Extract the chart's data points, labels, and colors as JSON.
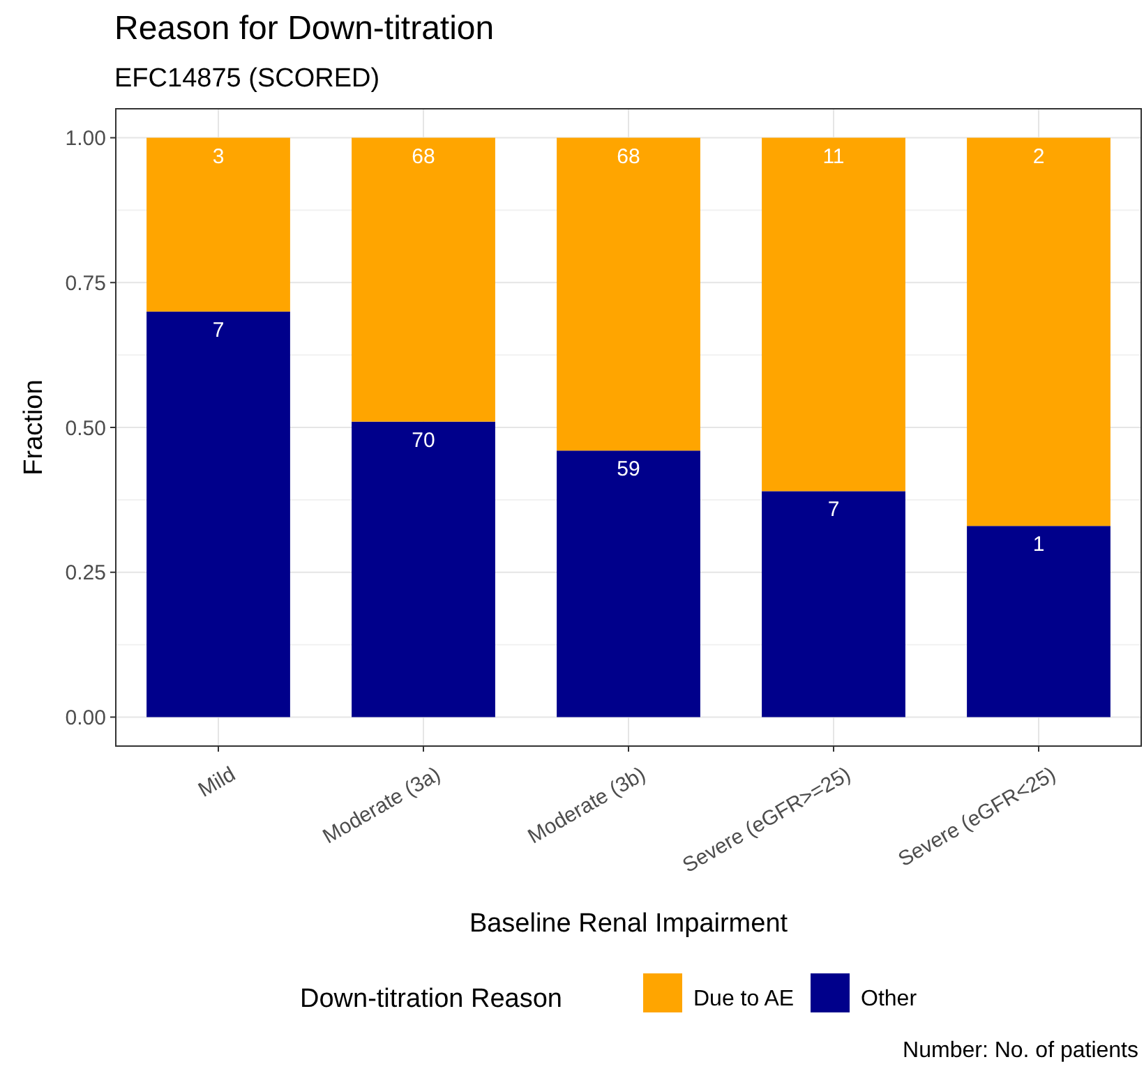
{
  "chart_data": {
    "type": "bar",
    "title": "Reason for Down-titration",
    "subtitle": "EFC14875 (SCORED)",
    "xlabel": "Baseline Renal Impairment",
    "ylabel": "Fraction",
    "legend_title": "Down-titration Reason",
    "categories": [
      "Mild",
      "Moderate (3a)",
      "Moderate (3b)",
      "Severe (eGFR>=25)",
      "Severe (eGFR<25)"
    ],
    "stacked": true,
    "series": [
      {
        "name": "Other",
        "color": "#00008b",
        "values": [
          0.7,
          0.51,
          0.46,
          0.39,
          0.33
        ]
      },
      {
        "name": "Due to AE",
        "color": "#ffa500",
        "values": [
          0.3,
          0.49,
          0.54,
          0.61,
          0.67
        ]
      }
    ],
    "ylim": [
      -0.05,
      1.05
    ],
    "yticks": [
      {
        "value": 0,
        "label": "0.00"
      },
      {
        "value": 0.25,
        "label": "0.25"
      },
      {
        "value": 0.5,
        "label": "0.50"
      },
      {
        "value": 0.75,
        "label": "0.75"
      },
      {
        "value": 1,
        "label": "1.00"
      }
    ],
    "grid": true,
    "legend": "bottom",
    "annotations": [
      "Number: No. of patients",
      {
        "text": "7",
        "x": "Mild",
        "y": 0.7
      },
      {
        "text": "70",
        "x": "Moderate (3a)",
        "y": 0.51
      },
      {
        "text": "59",
        "x": "Moderate (3b)",
        "y": 0.46
      },
      {
        "text": "7",
        "x": "Severe (eGFR>=25)",
        "y": 0.39
      },
      {
        "text": "1",
        "x": "Severe (eGFR<25)",
        "y": 0.33
      },
      {
        "text": "3",
        "x": "Mild",
        "y": 1
      },
      {
        "text": "68",
        "x": "Moderate (3a)",
        "y": 1
      },
      {
        "text": "68",
        "x": "Moderate (3b)",
        "y": 1
      },
      {
        "text": "11",
        "x": "Severe (eGFR>=25)",
        "y": 1
      },
      {
        "text": "2",
        "x": "Severe (eGFR<25)",
        "y": 1
      }
    ]
  }
}
